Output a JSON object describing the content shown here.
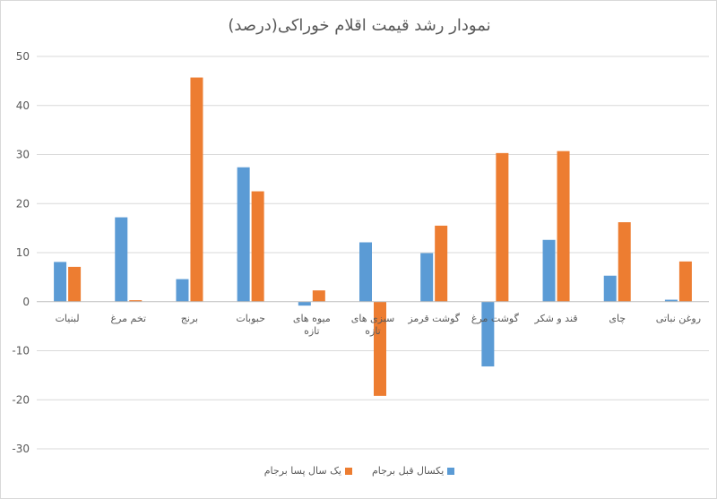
{
  "chart_data": {
    "type": "bar",
    "title": "نمودار رشد قیمت اقلام خوراکی(درصد)",
    "xlabel": "",
    "ylabel": "",
    "ylim": [
      -30,
      50
    ],
    "yticks": [
      50,
      40,
      30,
      20,
      10,
      0,
      -10,
      -20,
      -30
    ],
    "grid": true,
    "legend_position": "bottom",
    "categories": [
      "لبنیات",
      "تخم مرغ",
      "برنج",
      "حبوبات",
      "میوه های تازه",
      "سبزی های تازه",
      "گوشت قرمز",
      "گوشت مرغ",
      "قند و شکر",
      "چای",
      "روغن نباتی"
    ],
    "series": [
      {
        "name": "یکسال قبل برجام",
        "color": "#5b9bd5",
        "values": [
          8.1,
          17.2,
          4.6,
          27.4,
          -0.8,
          12.1,
          9.9,
          -13.2,
          12.6,
          5.3,
          0.4
        ]
      },
      {
        "name": "یک سال پسا برجام",
        "color": "#ed7d31",
        "values": [
          7.1,
          0.3,
          45.7,
          22.5,
          2.3,
          -19.2,
          15.5,
          30.3,
          30.7,
          16.2,
          8.2
        ]
      }
    ]
  }
}
